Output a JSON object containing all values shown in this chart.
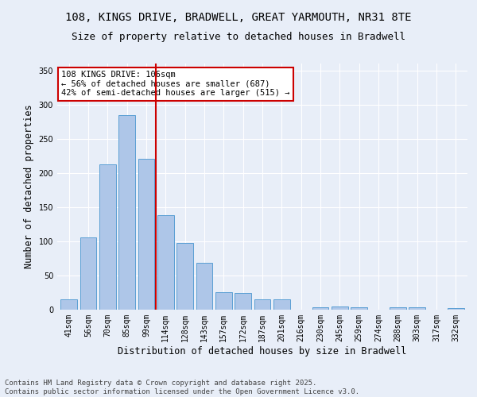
{
  "title1": "108, KINGS DRIVE, BRADWELL, GREAT YARMOUTH, NR31 8TE",
  "title2": "Size of property relative to detached houses in Bradwell",
  "xlabel": "Distribution of detached houses by size in Bradwell",
  "ylabel": "Number of detached properties",
  "categories": [
    "41sqm",
    "56sqm",
    "70sqm",
    "85sqm",
    "99sqm",
    "114sqm",
    "128sqm",
    "143sqm",
    "157sqm",
    "172sqm",
    "187sqm",
    "201sqm",
    "216sqm",
    "230sqm",
    "245sqm",
    "259sqm",
    "274sqm",
    "288sqm",
    "303sqm",
    "317sqm",
    "332sqm"
  ],
  "values": [
    15,
    106,
    213,
    284,
    221,
    138,
    97,
    68,
    25,
    24,
    15,
    15,
    0,
    3,
    5,
    3,
    0,
    3,
    3,
    0,
    2
  ],
  "bar_color": "#aec6e8",
  "bar_edge_color": "#5a9fd4",
  "annotation_text": "108 KINGS DRIVE: 106sqm\n← 56% of detached houses are smaller (687)\n42% of semi-detached houses are larger (515) →",
  "vline_x": 4.5,
  "vline_color": "#cc0000",
  "ylim": [
    0,
    360
  ],
  "yticks": [
    0,
    50,
    100,
    150,
    200,
    250,
    300,
    350
  ],
  "footer": "Contains HM Land Registry data © Crown copyright and database right 2025.\nContains public sector information licensed under the Open Government Licence v3.0.",
  "bg_color": "#e8eef8",
  "plot_bg_color": "#e8eef8",
  "annotation_box_color": "#ffffff",
  "annotation_box_edge": "#cc0000",
  "title_fontsize": 10,
  "title2_fontsize": 9,
  "axis_label_fontsize": 8.5,
  "tick_fontsize": 7,
  "footer_fontsize": 6.5,
  "annot_fontsize": 7.5
}
